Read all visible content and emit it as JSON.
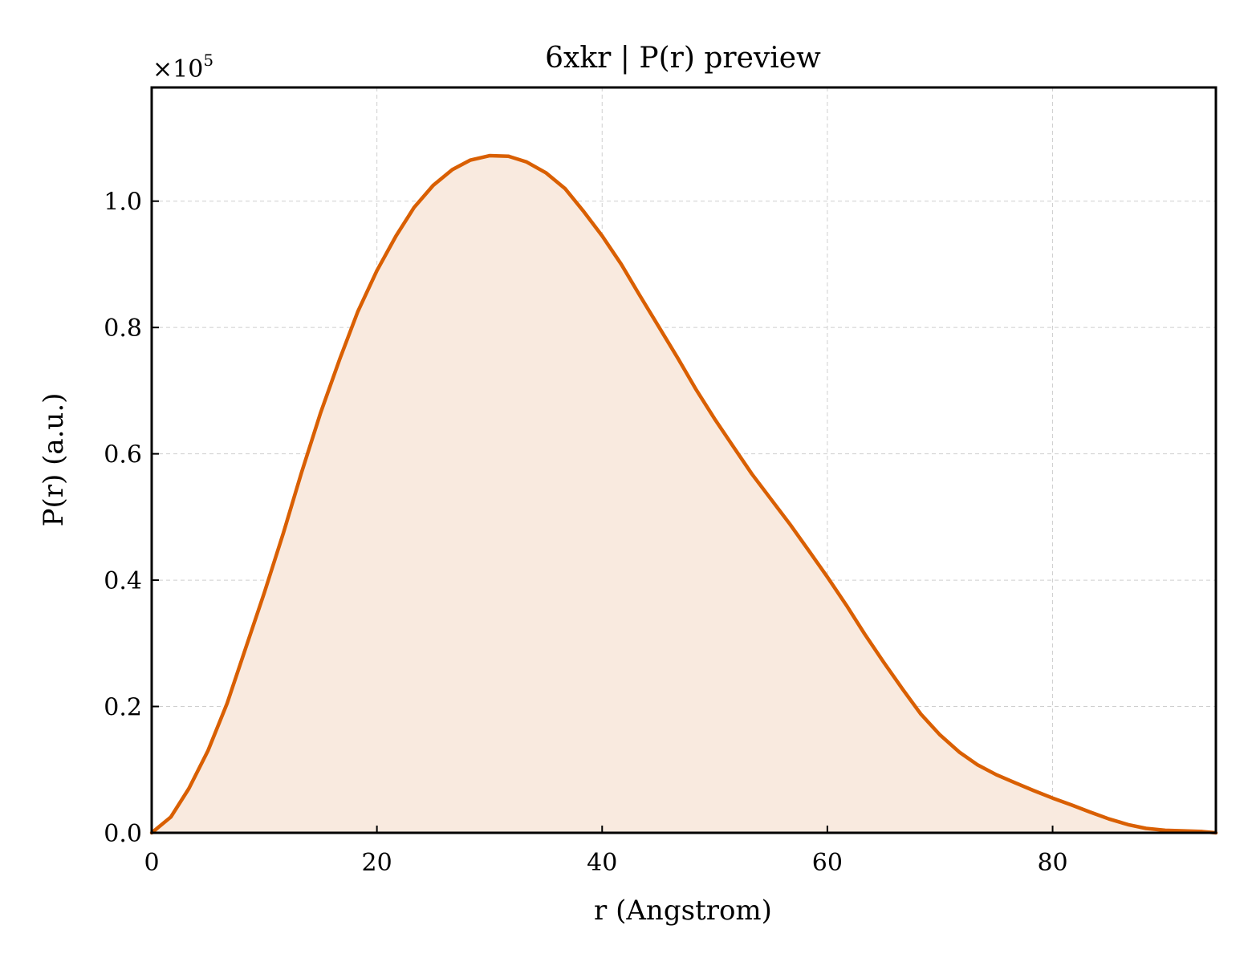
{
  "chart_data": {
    "type": "area",
    "title": "6xkr | P(r) preview",
    "xlabel": "r (Angstrom)",
    "ylabel": "P(r) (a.u.)",
    "y_multiplier_label": "×10",
    "y_multiplier_exponent": "5",
    "xlim": [
      0,
      94.5
    ],
    "ylim": [
      0,
      1.18
    ],
    "x_ticks": [
      0,
      20,
      40,
      60,
      80
    ],
    "x_tick_labels": [
      "0",
      "20",
      "40",
      "60",
      "80"
    ],
    "y_ticks": [
      0.0,
      0.2,
      0.4,
      0.6,
      0.8,
      1.0
    ],
    "y_tick_labels": [
      "0.0",
      "0.2",
      "0.4",
      "0.6",
      "0.8",
      "1.0"
    ],
    "grid": true,
    "colors": {
      "line": "#d95f02",
      "fill": "#f9eadf"
    },
    "series": [
      {
        "x": [
          0,
          1.7,
          3.3,
          5.0,
          6.7,
          8.3,
          10.0,
          11.7,
          13.3,
          15.0,
          16.7,
          18.3,
          20.0,
          21.7,
          23.3,
          25.0,
          26.7,
          28.3,
          30.0,
          31.7,
          33.3,
          35.0,
          36.7,
          38.3,
          40.0,
          41.7,
          43.3,
          45.0,
          46.7,
          48.3,
          50.0,
          51.7,
          53.3,
          55.0,
          56.7,
          58.3,
          60.0,
          61.7,
          63.3,
          65.0,
          66.7,
          68.3,
          70.0,
          71.7,
          73.3,
          75.0,
          76.7,
          78.3,
          80.0,
          81.7,
          83.3,
          85.0,
          86.7,
          88.3,
          90.0,
          91.7,
          93.3,
          94.5
        ],
        "values": [
          0.0,
          0.025,
          0.07,
          0.13,
          0.205,
          0.29,
          0.38,
          0.475,
          0.57,
          0.665,
          0.75,
          0.825,
          0.89,
          0.945,
          0.99,
          1.025,
          1.05,
          1.065,
          1.072,
          1.071,
          1.062,
          1.045,
          1.02,
          0.985,
          0.945,
          0.9,
          0.852,
          0.802,
          0.752,
          0.703,
          0.655,
          0.61,
          0.568,
          0.528,
          0.488,
          0.448,
          0.405,
          0.36,
          0.315,
          0.27,
          0.227,
          0.188,
          0.155,
          0.128,
          0.108,
          0.092,
          0.079,
          0.067,
          0.055,
          0.044,
          0.033,
          0.022,
          0.013,
          0.007,
          0.004,
          0.003,
          0.002,
          0.0
        ]
      }
    ]
  }
}
